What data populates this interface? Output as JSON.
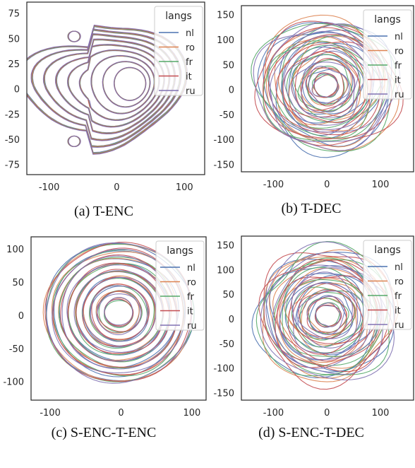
{
  "legend": {
    "title": "langs",
    "items": [
      {
        "label": "nl",
        "color": "#4c72b0"
      },
      {
        "label": "ro",
        "color": "#dd8452"
      },
      {
        "label": "fr",
        "color": "#55a868"
      },
      {
        "label": "it",
        "color": "#c44e52"
      },
      {
        "label": "ru",
        "color": "#8172b3"
      }
    ]
  },
  "chart_data": [
    {
      "type": "kde-contour",
      "caption": "(a) T-ENC",
      "xticks": [
        -100,
        0,
        100
      ],
      "yticks": [
        75,
        50,
        25,
        0,
        -25,
        -50,
        -75
      ],
      "xlim": [
        -133,
        130
      ],
      "ylim": [
        -85,
        86
      ],
      "series": [
        {
          "name": "nl",
          "levels": 9
        },
        {
          "name": "ro",
          "levels": 9
        },
        {
          "name": "fr",
          "levels": 9
        },
        {
          "name": "it",
          "levels": 9
        },
        {
          "name": "ru",
          "levels": 9
        }
      ]
    },
    {
      "type": "kde-contour",
      "caption": "(b) T-DEC",
      "xticks": [
        -100,
        0,
        100
      ],
      "yticks": [
        150,
        100,
        50,
        0,
        -50,
        -100,
        -150
      ],
      "xlim": [
        -160,
        162
      ],
      "ylim": [
        -165,
        168
      ],
      "series": [
        {
          "name": "nl",
          "levels": 9
        },
        {
          "name": "ro",
          "levels": 9
        },
        {
          "name": "fr",
          "levels": 9
        },
        {
          "name": "it",
          "levels": 9
        },
        {
          "name": "ru",
          "levels": 9
        }
      ]
    },
    {
      "type": "kde-contour",
      "caption": "(c) S-ENC-T-ENC",
      "xticks": [
        -100,
        0,
        100
      ],
      "yticks": [
        100,
        50,
        0,
        -50,
        -100
      ],
      "xlim": [
        -127,
        120
      ],
      "ylim": [
        -128,
        118
      ],
      "series": [
        {
          "name": "nl",
          "levels": 9
        },
        {
          "name": "ro",
          "levels": 9
        },
        {
          "name": "fr",
          "levels": 9
        },
        {
          "name": "it",
          "levels": 9
        },
        {
          "name": "ru",
          "levels": 9
        }
      ]
    },
    {
      "type": "kde-contour",
      "caption": "(d) S-ENC-T-DEC",
      "xticks": [
        -100,
        0,
        100
      ],
      "yticks": [
        150,
        100,
        50,
        0,
        -50,
        -100,
        -150
      ],
      "xlim": [
        -160,
        162
      ],
      "ylim": [
        -165,
        168
      ],
      "series": [
        {
          "name": "nl",
          "levels": 9
        },
        {
          "name": "ro",
          "levels": 9
        },
        {
          "name": "fr",
          "levels": 9
        },
        {
          "name": "it",
          "levels": 9
        },
        {
          "name": "ru",
          "levels": 9
        }
      ]
    }
  ]
}
